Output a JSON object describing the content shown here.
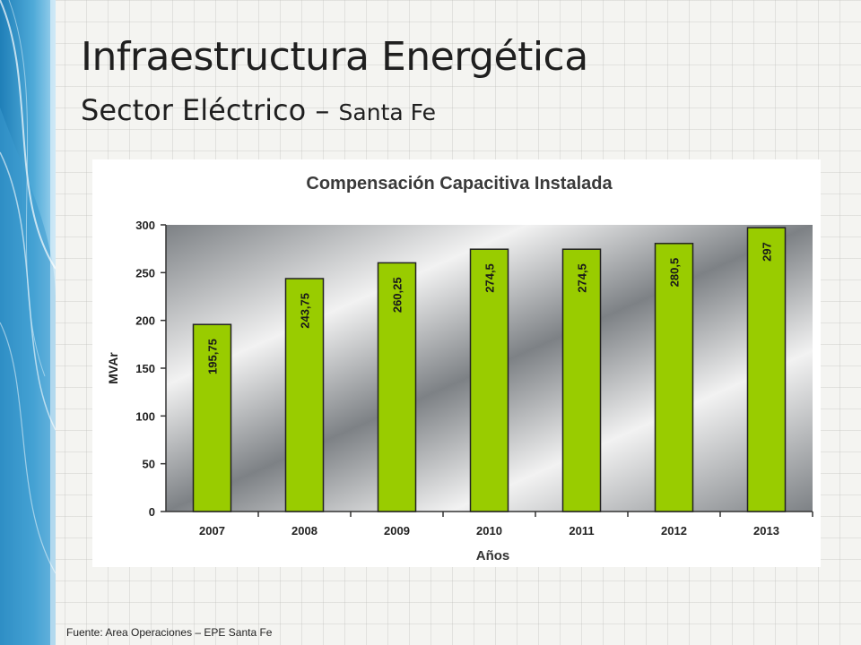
{
  "slide": {
    "title": "Infraestructura Energética",
    "subtitle_main": "Sector Eléctrico",
    "subtitle_sep": " – ",
    "subtitle_place": "Santa Fe",
    "source": "Fuente: Area Operaciones – EPE Santa Fe"
  },
  "colors": {
    "bar_fill": "#99cc00",
    "bar_stroke": "#222222",
    "plot_dark": "#7d8185",
    "plot_light": "#f2f2f2",
    "accent_blue": "#2c8fc6"
  },
  "chart_data": {
    "type": "bar",
    "title": "Compensación Capacitiva Instalada",
    "xlabel": "Años",
    "ylabel": "MVAr",
    "categories": [
      "2007",
      "2008",
      "2009",
      "2010",
      "2011",
      "2012",
      "2013"
    ],
    "values": [
      195.75,
      243.75,
      260.25,
      274.5,
      274.5,
      280.5,
      297
    ],
    "value_labels": [
      "195,75",
      "243,75",
      "260,25",
      "274,5",
      "274,5",
      "280,5",
      "297"
    ],
    "yticks": [
      "0",
      "50",
      "100",
      "150",
      "200",
      "250",
      "300"
    ],
    "ylim": [
      0,
      300
    ],
    "grid": false,
    "legend": "none"
  }
}
